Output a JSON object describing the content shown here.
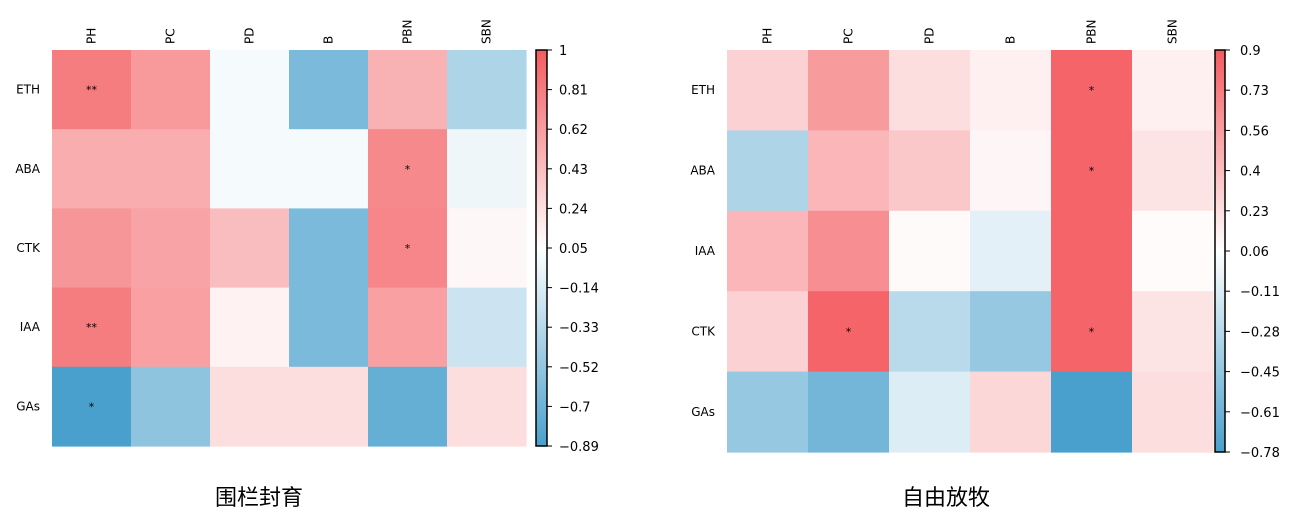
{
  "chart_data": [
    {
      "type": "heatmap",
      "title": "围栏封育",
      "columns": [
        "PH",
        "PC",
        "PD",
        "B",
        "PBN",
        "SBN"
      ],
      "rows": [
        "ETH",
        "ABA",
        "CTK",
        "IAA",
        "GAs"
      ],
      "values": [
        [
          0.8,
          0.62,
          -0.05,
          -0.65,
          0.47,
          -0.4
        ],
        [
          0.5,
          0.5,
          -0.05,
          -0.05,
          0.72,
          -0.08
        ],
        [
          0.64,
          0.56,
          0.4,
          -0.65,
          0.74,
          0.05
        ],
        [
          0.8,
          0.58,
          0.08,
          -0.65,
          0.58,
          -0.25
        ],
        [
          -0.89,
          -0.55,
          0.2,
          0.2,
          -0.75,
          0.2
        ]
      ],
      "stars": [
        [
          "**",
          "",
          "",
          "",
          "",
          ""
        ],
        [
          "",
          "",
          "",
          "",
          "*",
          ""
        ],
        [
          "",
          "",
          "",
          "",
          "*",
          ""
        ],
        [
          "**",
          "",
          "",
          "",
          "",
          ""
        ],
        [
          "*",
          "",
          "",
          "",
          "",
          ""
        ]
      ],
      "scale": {
        "min": -0.89,
        "max": 1.0
      },
      "colorbar_ticks": [
        "1",
        "0.81",
        "0.62",
        "0.43",
        "0.24",
        "0.05",
        "−0.14",
        "−0.33",
        "−0.52",
        "−0.7",
        "−0.89"
      ]
    },
    {
      "type": "heatmap",
      "title": "自由放牧",
      "columns": [
        "PH",
        "PC",
        "PD",
        "B",
        "PBN",
        "SBN"
      ],
      "rows": [
        "ETH",
        "ABA",
        "IAA",
        "CTK",
        "GAs"
      ],
      "values": [
        [
          0.25,
          0.55,
          0.18,
          0.08,
          0.85,
          0.08
        ],
        [
          -0.35,
          0.4,
          0.3,
          0.05,
          0.85,
          0.15
        ],
        [
          0.4,
          0.62,
          0.03,
          -0.12,
          0.85,
          0.02
        ],
        [
          0.25,
          0.85,
          -0.3,
          -0.45,
          0.85,
          0.15
        ],
        [
          -0.45,
          -0.6,
          -0.15,
          0.22,
          -0.78,
          0.18
        ]
      ],
      "stars": [
        [
          "",
          "",
          "",
          "",
          "*",
          ""
        ],
        [
          "",
          "",
          "",
          "",
          "*",
          ""
        ],
        [
          "",
          "",
          "",
          "",
          "",
          ""
        ],
        [
          "",
          "*",
          "",
          "",
          "*",
          ""
        ],
        [
          "",
          "",
          "",
          "",
          "",
          ""
        ]
      ],
      "scale": {
        "min": -0.78,
        "max": 0.9
      },
      "colorbar_ticks": [
        "0.9",
        "0.73",
        "0.56",
        "0.4",
        "0.23",
        "0.06",
        "−0.11",
        "−0.28",
        "−0.45",
        "−0.61",
        "−0.78"
      ]
    }
  ],
  "colors": {
    "positive": "#f35b5f",
    "negative": "#4aa0cc",
    "neutral": "#ffffff",
    "border": "#000000"
  }
}
